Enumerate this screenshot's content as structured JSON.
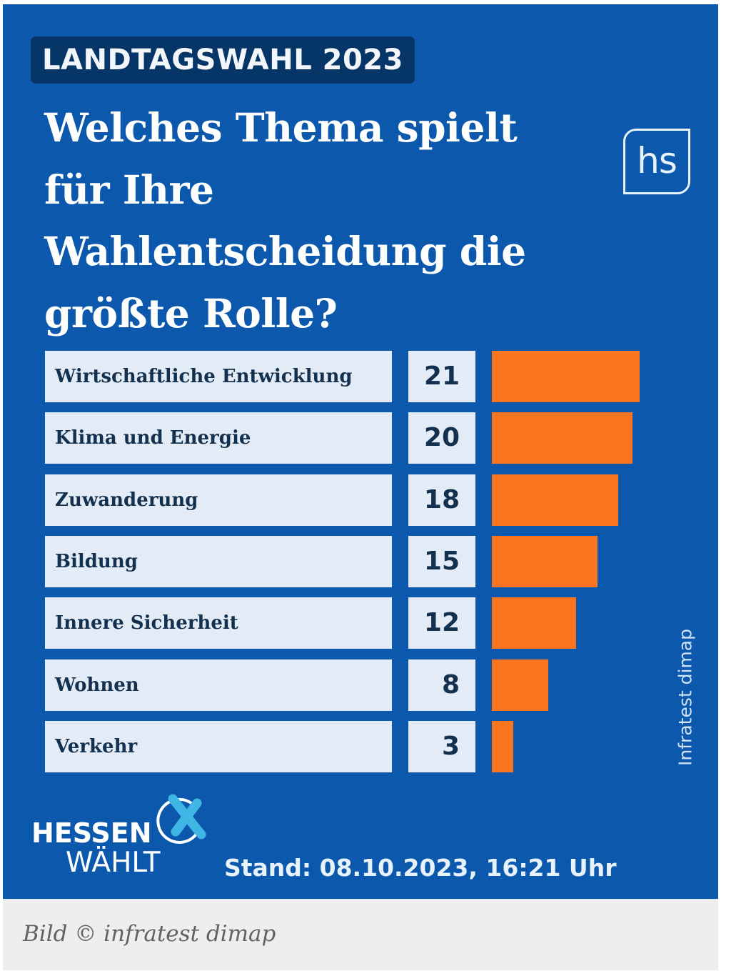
{
  "header": {
    "badge": "LANDTAGSWAHL 2023",
    "title_lines": [
      "Welches Thema spielt",
      "für Ihre",
      "Wahlentscheidung die",
      "größte Rolle?"
    ],
    "logo_text": "hs"
  },
  "chart_data": {
    "type": "bar",
    "orientation": "horizontal",
    "title": "Welches Thema spielt für Ihre Wahlentscheidung die größte Rolle?",
    "categories": [
      "Wirtschaftliche Entwicklung",
      "Klima und Energie",
      "Zuwanderung",
      "Bildung",
      "Innere Sicherheit",
      "Wohnen",
      "Verkehr"
    ],
    "values": [
      21,
      20,
      18,
      15,
      12,
      8,
      3
    ],
    "xlabel": "",
    "ylabel": "",
    "xlim": [
      0,
      21
    ],
    "grid": false,
    "bar_color": "#fb7420"
  },
  "source_vertical": "Infratest dimap",
  "footer": {
    "brand_line1": "HESSEN",
    "brand_line2": "WÄHLT",
    "stand": "Stand: 08.10.2023, 16:21 Uhr"
  },
  "caption": "Bild © infratest dimap",
  "colors": {
    "background": "#0b58ad",
    "badge": "#063567",
    "box": "#e3ecf6",
    "bar": "#fb7420",
    "accent_x": "#3fb6e4"
  }
}
